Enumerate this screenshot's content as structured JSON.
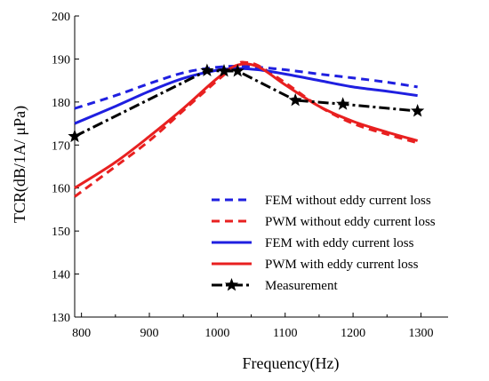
{
  "chart_data": {
    "type": "line",
    "xlabel": "Frequency(Hz)",
    "ylabel": "TCR(dB/1A/  μPa)",
    "xlim": [
      790,
      1340
    ],
    "ylim": [
      130,
      200
    ],
    "xticks": [
      "800",
      "900",
      "1000",
      "1100",
      "1200",
      "1300"
    ],
    "yticks": [
      "130",
      "140",
      "150",
      "160",
      "170",
      "180",
      "190",
      "200"
    ],
    "legend_position": "bottom-right",
    "series": [
      {
        "name": "FEM without eddy current loss",
        "color": "#1f1fe0",
        "dash": "dashed",
        "marker": "none",
        "x": [
          790,
          850,
          900,
          950,
          990,
          1020,
          1050,
          1100,
          1150,
          1200,
          1250,
          1295
        ],
        "y": [
          178.5,
          181.5,
          184.3,
          186.8,
          187.9,
          188.3,
          188.2,
          187.5,
          186.5,
          185.6,
          184.6,
          183.5
        ]
      },
      {
        "name": "PWM without eddy current loss",
        "color": "#e82020",
        "dash": "dashed",
        "marker": "none",
        "x": [
          790,
          850,
          900,
          950,
          1000,
          1030,
          1040,
          1060,
          1100,
          1150,
          1200,
          1250,
          1295
        ],
        "y": [
          158,
          165,
          171,
          178,
          185,
          188.8,
          189.2,
          188.5,
          184.5,
          179,
          175,
          172.5,
          170.5
        ]
      },
      {
        "name": "FEM with eddy current loss",
        "color": "#1f1fe0",
        "dash": "solid",
        "marker": "none",
        "x": [
          790,
          850,
          900,
          950,
          1000,
          1030,
          1060,
          1100,
          1150,
          1200,
          1250,
          1295
        ],
        "y": [
          175,
          179,
          182.5,
          185.5,
          187.4,
          187.8,
          187.5,
          186.5,
          185,
          183.5,
          182.5,
          181.5
        ]
      },
      {
        "name": "PWM with eddy current loss",
        "color": "#e82020",
        "dash": "solid",
        "marker": "none",
        "x": [
          790,
          850,
          900,
          950,
          1000,
          1030,
          1060,
          1100,
          1150,
          1200,
          1250,
          1295
        ],
        "y": [
          160,
          166,
          172,
          178.5,
          185.5,
          188.6,
          188.2,
          184,
          179,
          175.5,
          173,
          171
        ]
      },
      {
        "name": "Measurement",
        "color": "#000000",
        "dash": "dashdot",
        "marker": "star",
        "x": [
          790,
          985,
          1010,
          1030,
          1115,
          1185,
          1295
        ],
        "y": [
          172,
          187.3,
          187.2,
          187.2,
          180.4,
          179.5,
          177.9
        ]
      }
    ]
  }
}
